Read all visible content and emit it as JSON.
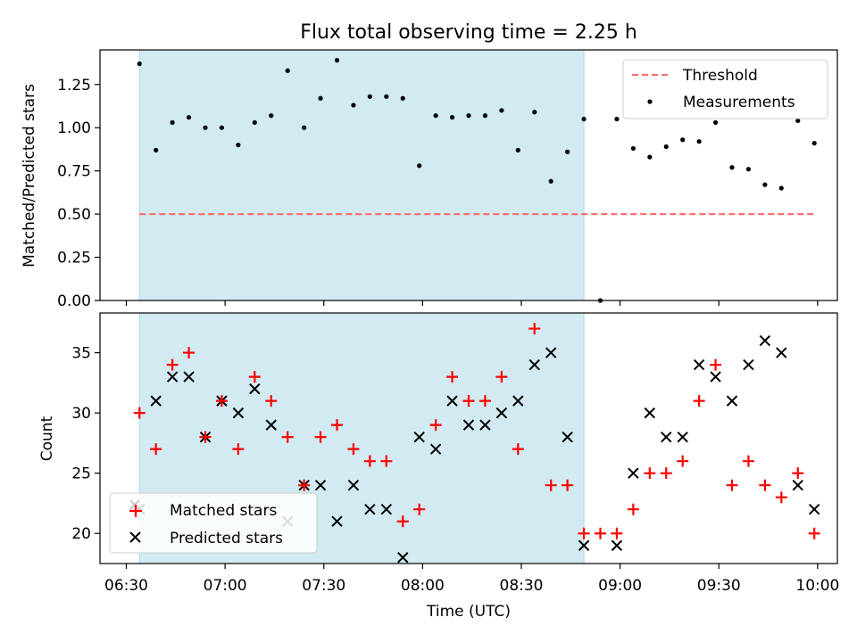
{
  "title": "Flux total observing time = 2.25 h",
  "colors": {
    "shade": "#add8e6",
    "threshold": "#ff7070",
    "matched": "#ff0000",
    "predicted": "#000000",
    "measure": "#000000"
  },
  "chart_data": [
    {
      "type": "scatter",
      "ylabel": "Matched/Predicted stars",
      "xlim_minutes": [
        382,
        606
      ],
      "ylim": [
        0,
        1.45
      ],
      "yticks": [
        0.0,
        0.25,
        0.5,
        0.75,
        1.0,
        1.25
      ],
      "ytick_labels": [
        "0.00",
        "0.25",
        "0.50",
        "0.75",
        "1.00",
        "1.25"
      ],
      "shaded_span_minutes": [
        394,
        529
      ],
      "threshold": {
        "name": "Threshold",
        "value": 0.5,
        "x_from": 394,
        "x_to": 599
      },
      "series": [
        {
          "name": "Measurements",
          "x": [
            394,
            399,
            404,
            409,
            414,
            419,
            424,
            429,
            434,
            439,
            444,
            449,
            454,
            459,
            464,
            469,
            474,
            479,
            484,
            489,
            494,
            499,
            504,
            509,
            514,
            519,
            524,
            529,
            534,
            539,
            544,
            549,
            554,
            559,
            564,
            569,
            574,
            579,
            584,
            589,
            594,
            599
          ],
          "y": [
            1.37,
            0.87,
            1.03,
            1.06,
            1.0,
            1.0,
            0.9,
            1.03,
            1.07,
            1.33,
            1.0,
            1.17,
            1.39,
            1.13,
            1.18,
            1.18,
            1.17,
            0.78,
            1.07,
            1.06,
            1.07,
            1.07,
            1.1,
            0.87,
            1.09,
            0.69,
            0.86,
            1.05,
            0.0,
            1.05,
            0.88,
            0.83,
            0.89,
            0.93,
            0.92,
            1.03,
            0.77,
            0.76,
            0.67,
            0.65,
            1.04,
            0.91
          ]
        }
      ],
      "legend": [
        "Threshold",
        "Measurements"
      ],
      "legend_position": "top-right"
    },
    {
      "type": "scatter",
      "title": "",
      "xlabel": "Time (UTC)",
      "ylabel": "Count",
      "xlim_minutes": [
        382,
        606
      ],
      "ylim": [
        17.5,
        38.3
      ],
      "yticks": [
        20,
        25,
        30,
        35
      ],
      "ytick_labels": [
        "20",
        "25",
        "30",
        "35"
      ],
      "xticks_minutes": [
        390,
        420,
        450,
        480,
        510,
        540,
        570,
        600
      ],
      "xtick_labels": [
        "06:30",
        "07:00",
        "07:30",
        "08:00",
        "08:30",
        "09:00",
        "09:30",
        "10:00"
      ],
      "shaded_span_minutes": [
        394,
        529
      ],
      "series": [
        {
          "name": "Matched stars",
          "x": [
            394,
            399,
            404,
            409,
            414,
            419,
            424,
            429,
            434,
            439,
            444,
            449,
            454,
            459,
            464,
            469,
            474,
            479,
            484,
            489,
            494,
            499,
            504,
            509,
            514,
            519,
            524,
            529,
            534,
            539,
            544,
            549,
            554,
            559,
            564,
            569,
            574,
            579,
            584,
            589,
            594,
            599
          ],
          "y": [
            30,
            27,
            34,
            35,
            28,
            31,
            27,
            33,
            31,
            28,
            24,
            28,
            29,
            27,
            26,
            26,
            21,
            22,
            29,
            33,
            31,
            31,
            33,
            27,
            37,
            24,
            24,
            20,
            20,
            20,
            22,
            25,
            25,
            26,
            31,
            34,
            24,
            26,
            24,
            23,
            25,
            20
          ]
        },
        {
          "name": "Predicted stars",
          "x": [
            394,
            399,
            404,
            409,
            414,
            419,
            424,
            429,
            434,
            439,
            444,
            449,
            454,
            459,
            464,
            469,
            474,
            479,
            484,
            489,
            494,
            499,
            504,
            509,
            514,
            519,
            524,
            529,
            539,
            544,
            549,
            554,
            559,
            564,
            569,
            574,
            579,
            584,
            589,
            594,
            599
          ],
          "y": [
            22,
            31,
            33,
            33,
            28,
            31,
            30,
            32,
            29,
            21,
            24,
            24,
            21,
            24,
            22,
            22,
            18,
            28,
            27,
            31,
            29,
            29,
            30,
            31,
            34,
            35,
            28,
            19,
            19,
            25,
            30,
            28,
            28,
            34,
            33,
            31,
            34,
            36,
            35,
            24,
            22
          ]
        }
      ],
      "legend": [
        "Matched stars",
        "Predicted stars"
      ],
      "legend_position": "lower-left"
    }
  ]
}
